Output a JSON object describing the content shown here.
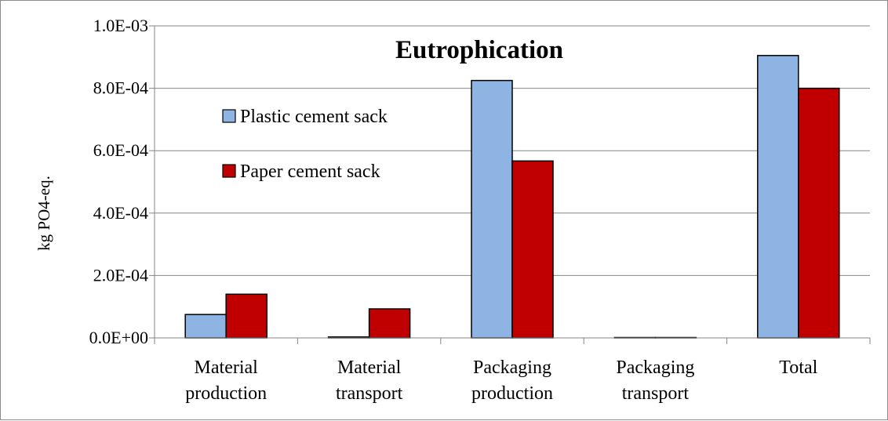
{
  "chart_data": {
    "type": "bar",
    "title": "Eutrophication",
    "xlabel": "",
    "ylabel": "kg PO4-eq.",
    "ylim": [
      0,
      0.001
    ],
    "yticks": [
      0,
      0.0002,
      0.0004,
      0.0006,
      0.0008,
      0.001
    ],
    "ytick_labels": [
      "0.0E+00",
      "2.0E-04",
      "4.0E-04",
      "6.0E-04",
      "8.0E-04",
      "1.0E-03"
    ],
    "grid": true,
    "legend_position": "upper-left",
    "categories": [
      [
        "Material",
        "production"
      ],
      [
        "Material",
        "transport"
      ],
      [
        "Packaging",
        "production"
      ],
      [
        "Packaging",
        "transport"
      ],
      [
        "Total"
      ]
    ],
    "series": [
      {
        "name": "Plastic cement sack",
        "color": "#8eb4e3",
        "values": [
          7.5e-05,
          3e-06,
          0.000825,
          1e-06,
          0.000905
        ]
      },
      {
        "name": "Paper cement sack",
        "color": "#c00000",
        "values": [
          0.00014,
          9.3e-05,
          0.000567,
          1e-06,
          0.0008
        ]
      }
    ]
  }
}
